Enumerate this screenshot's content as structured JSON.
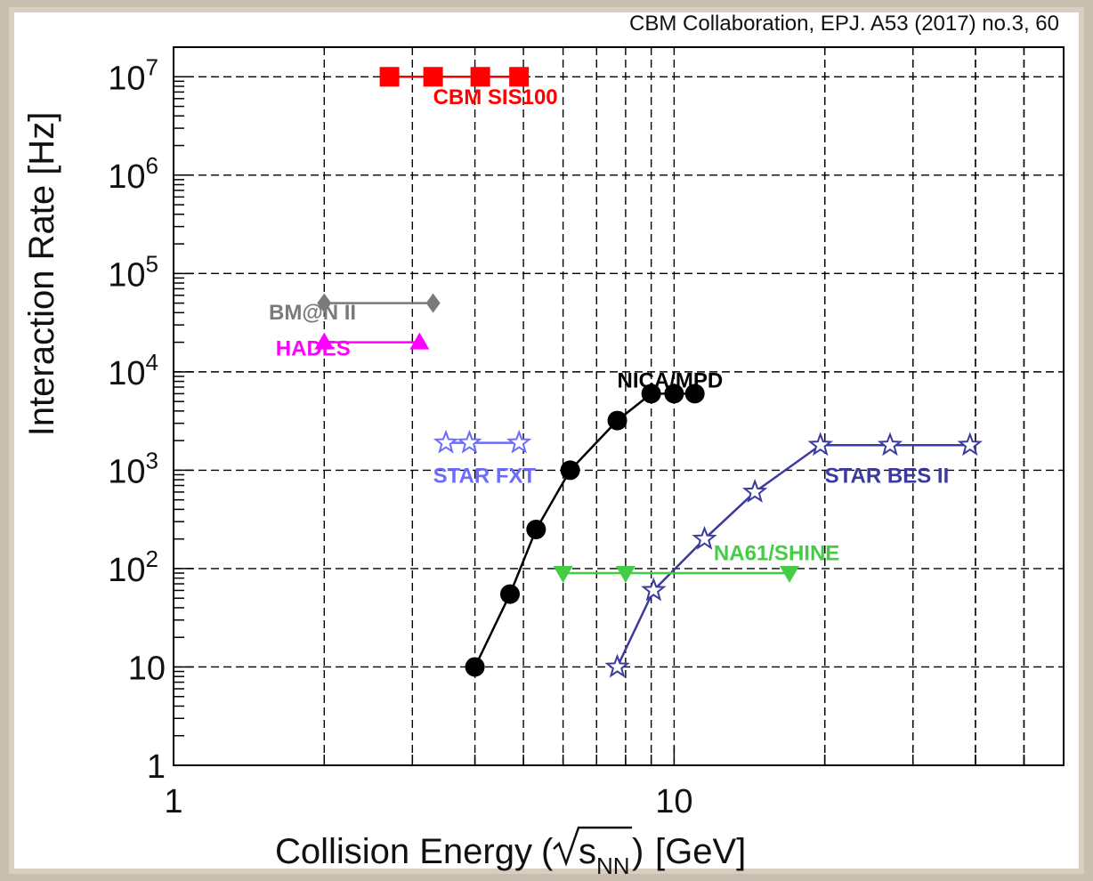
{
  "chart_data": {
    "type": "scatter",
    "title": "",
    "citation": "CBM Collaboration, EPJ. A53 (2017) no.3, 60",
    "xlabel": "Collision Energy",
    "xlabel_unit": "[GeV]",
    "xlabel_sqrt_symbol": "s",
    "xlabel_sqrt_subscript": "NN",
    "ylabel": "Interaction Rate [Hz]",
    "xscale": "log",
    "yscale": "log",
    "xlim": [
      1,
      60
    ],
    "ylim": [
      1,
      20000000
    ],
    "grid": true,
    "x_ticks": [
      {
        "value": 1,
        "label": "1"
      },
      {
        "value": 10,
        "label": "10"
      }
    ],
    "y_ticks": [
      {
        "value": 1,
        "label": "1"
      },
      {
        "value": 10,
        "label": "10"
      },
      {
        "value": 100,
        "base": "10",
        "exp": "2"
      },
      {
        "value": 1000,
        "base": "10",
        "exp": "3"
      },
      {
        "value": 10000,
        "base": "10",
        "exp": "4"
      },
      {
        "value": 100000,
        "base": "10",
        "exp": "5"
      },
      {
        "value": 1000000,
        "base": "10",
        "exp": "6"
      },
      {
        "value": 10000000,
        "base": "10",
        "exp": "7"
      }
    ],
    "series": [
      {
        "name": "CBM SIS100",
        "color": "#ff0000",
        "marker": "square",
        "line": true,
        "points": [
          [
            2.7,
            10000000
          ],
          [
            3.3,
            10000000
          ],
          [
            4.1,
            10000000
          ],
          [
            4.9,
            10000000
          ]
        ],
        "label_at": [
          3.3,
          6500000
        ]
      },
      {
        "name": "BM@N II",
        "color": "#7a7a7a",
        "marker": "diamond",
        "line": true,
        "points": [
          [
            2.0,
            50000
          ],
          [
            3.3,
            50000
          ]
        ],
        "label_at": [
          1.55,
          42000
        ]
      },
      {
        "name": "HADES",
        "color": "#ff00ff",
        "marker": "triangle-up",
        "line": true,
        "points": [
          [
            2.0,
            20000
          ],
          [
            3.1,
            20000
          ]
        ],
        "label_at": [
          1.6,
          18000
        ]
      },
      {
        "name": "NICA/MPD",
        "color": "#000000",
        "marker": "circle",
        "line": true,
        "points": [
          [
            4.0,
            10
          ],
          [
            4.7,
            55
          ],
          [
            5.3,
            250
          ],
          [
            6.2,
            1000
          ],
          [
            7.7,
            3200
          ],
          [
            9.0,
            6000
          ],
          [
            10.0,
            6000
          ],
          [
            11.0,
            6000
          ]
        ],
        "label_at": [
          7.7,
          8500
        ]
      },
      {
        "name": "STAR FXT",
        "color": "#6b6bff",
        "marker": "star",
        "line": true,
        "points": [
          [
            3.5,
            1900
          ],
          [
            3.9,
            1900
          ],
          [
            4.9,
            1900
          ]
        ],
        "label_at": [
          3.3,
          920
        ]
      },
      {
        "name": "STAR BES II",
        "color": "#3b3b9e",
        "marker": "star",
        "line": true,
        "points": [
          [
            7.7,
            10
          ],
          [
            9.1,
            60
          ],
          [
            11.5,
            200
          ],
          [
            14.5,
            600
          ],
          [
            19.6,
            1800
          ],
          [
            27.0,
            1800
          ],
          [
            39.0,
            1800
          ]
        ],
        "label_at": [
          20.0,
          920
        ]
      },
      {
        "name": "NA61/SHINE",
        "color": "#44cc44",
        "marker": "triangle-down",
        "line": true,
        "points": [
          [
            6.0,
            90
          ],
          [
            8.0,
            90
          ],
          [
            17.0,
            90
          ]
        ],
        "label_at": [
          12.0,
          150
        ]
      }
    ]
  }
}
